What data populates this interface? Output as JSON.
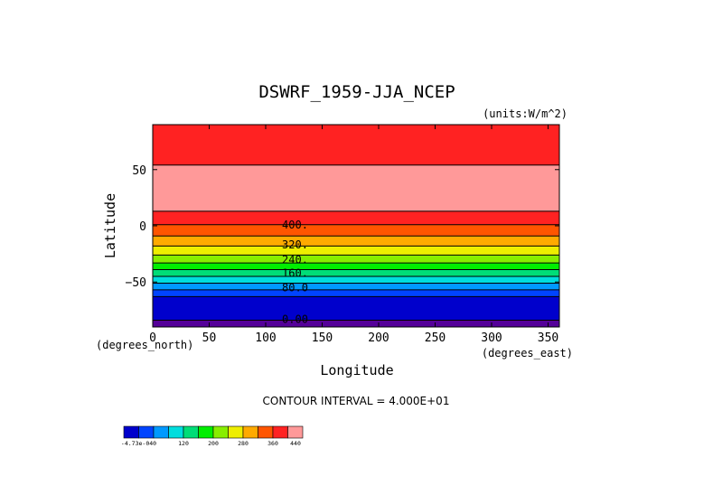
{
  "chart_data": {
    "type": "heatmap",
    "title": "DSWRF_1959-JJA_NCEP",
    "units_label": "(units:W/m^2)",
    "xlabel": "Longitude",
    "ylabel": "Latitude",
    "x_unit_label": "(degrees_east)",
    "y_unit_label": "(degrees_north)",
    "xlim": [
      0,
      360
    ],
    "ylim": [
      -90,
      90
    ],
    "x_ticks": [
      0,
      50,
      100,
      150,
      200,
      250,
      300,
      350
    ],
    "x_tick_labels": [
      "0",
      "50",
      "100",
      "150",
      "200",
      "250",
      "300",
      "350"
    ],
    "y_ticks": [
      50,
      0,
      -50
    ],
    "y_tick_labels": [
      "50",
      "0",
      "−50"
    ],
    "contour_interval_text": "CONTOUR INTERVAL = 4.000E+01",
    "contour_levels": [
      -0.000473,
      40,
      80,
      120,
      160,
      200,
      240,
      280,
      320,
      360,
      400,
      440
    ],
    "bands": [
      {
        "lat_top": 90,
        "lat_bottom": 54,
        "level": 440,
        "color": "#ff2222"
      },
      {
        "lat_top": 54,
        "lat_bottom": 13,
        "level": 440,
        "color": "#ff9999"
      },
      {
        "lat_top": 13,
        "lat_bottom": 1,
        "level": 400,
        "color": "#ff2222"
      },
      {
        "lat_top": 1,
        "lat_bottom": -9,
        "level": 360,
        "color": "#ff5500"
      },
      {
        "lat_top": -9,
        "lat_bottom": -18,
        "level": 320,
        "color": "#ffaa00"
      },
      {
        "lat_top": -18,
        "lat_bottom": -26,
        "level": 280,
        "color": "#eeee00"
      },
      {
        "lat_top": -26,
        "lat_bottom": -33,
        "level": 240,
        "color": "#88ee00"
      },
      {
        "lat_top": -33,
        "lat_bottom": -39,
        "level": 200,
        "color": "#00ee00"
      },
      {
        "lat_top": -39,
        "lat_bottom": -45,
        "level": 160,
        "color": "#00dd77"
      },
      {
        "lat_top": -45,
        "lat_bottom": -51,
        "level": 120,
        "color": "#00dddd"
      },
      {
        "lat_top": -51,
        "lat_bottom": -57,
        "level": 80,
        "color": "#0099ff"
      },
      {
        "lat_top": -57,
        "lat_bottom": -63,
        "level": 40,
        "color": "#0044ff"
      },
      {
        "lat_top": -63,
        "lat_bottom": -84,
        "level": 0,
        "color": "#0000cc"
      },
      {
        "lat_top": -84,
        "lat_bottom": -90,
        "level": -1,
        "color": "#550099"
      }
    ],
    "contour_labels": [
      {
        "text": "400.",
        "lon": 126,
        "lat": 1
      },
      {
        "text": "320.",
        "lon": 126,
        "lat": -17
      },
      {
        "text": "240.",
        "lon": 126,
        "lat": -30
      },
      {
        "text": "160.",
        "lon": 126,
        "lat": -42
      },
      {
        "text": "80.0",
        "lon": 126,
        "lat": -55
      },
      {
        "text": "0.00",
        "lon": 126,
        "lat": -83
      }
    ],
    "colorbar": {
      "colors": [
        "#0000cc",
        "#0044ff",
        "#0099ff",
        "#00dddd",
        "#00dd77",
        "#00ee00",
        "#88ee00",
        "#eeee00",
        "#ffaa00",
        "#ff5500",
        "#ff2222",
        "#ff9999"
      ],
      "labels": [
        {
          "text": "-4.73e-040",
          "index": 1
        },
        {
          "text": "120",
          "index": 4
        },
        {
          "text": "200",
          "index": 6
        },
        {
          "text": "280",
          "index": 8
        },
        {
          "text": "360",
          "index": 10
        },
        {
          "text": "440",
          "index": 12
        }
      ]
    }
  }
}
